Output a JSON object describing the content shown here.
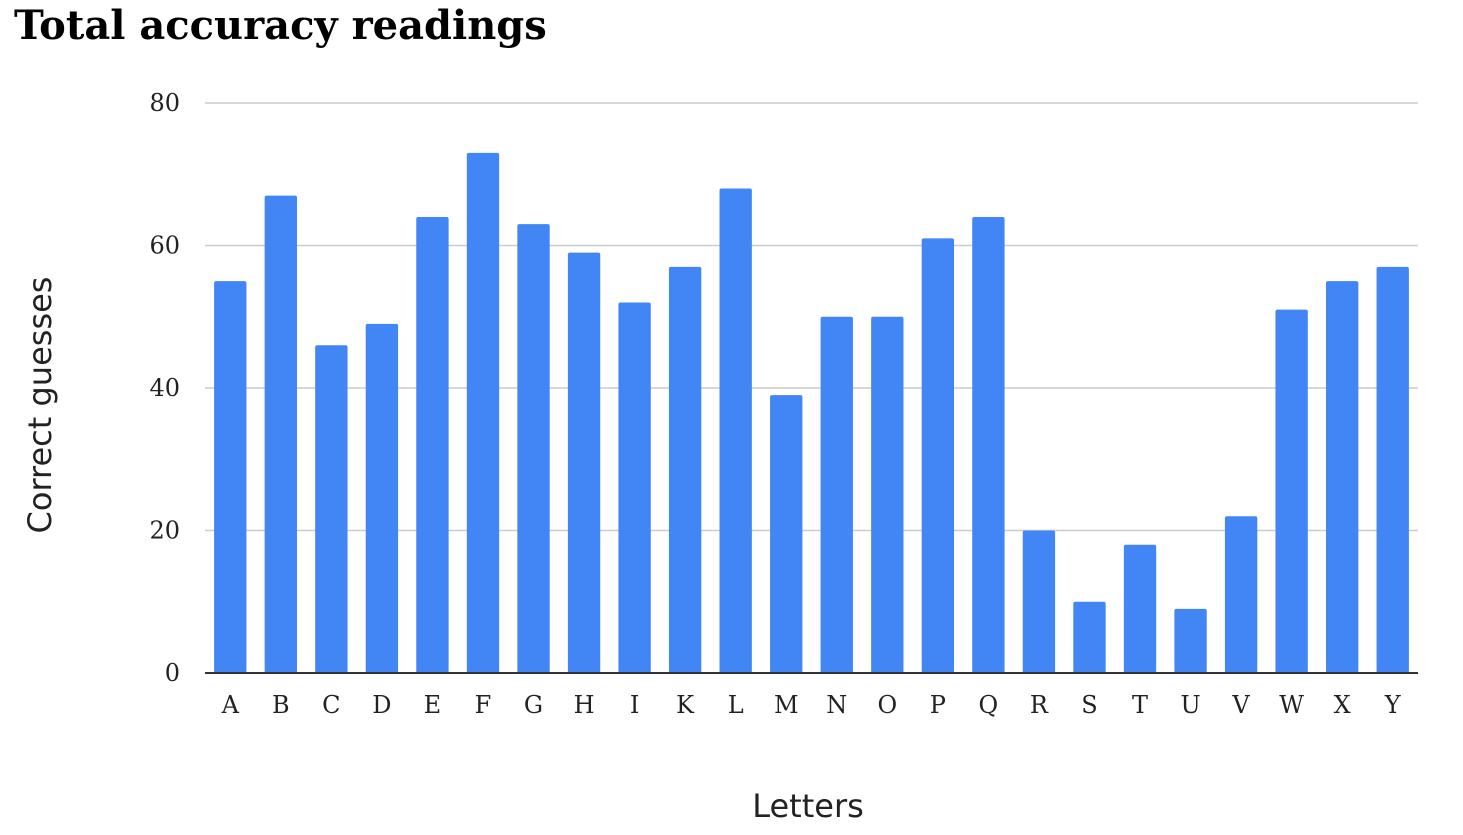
{
  "chart_data": {
    "type": "bar",
    "title": "Total accuracy readings",
    "xlabel": "Letters",
    "ylabel": "Correct guesses",
    "categories": [
      "A",
      "B",
      "C",
      "D",
      "E",
      "F",
      "G",
      "H",
      "I",
      "K",
      "L",
      "M",
      "N",
      "O",
      "P",
      "Q",
      "R",
      "S",
      "T",
      "U",
      "V",
      "W",
      "X",
      "Y"
    ],
    "values": [
      55,
      67,
      46,
      49,
      64,
      73,
      63,
      59,
      52,
      57,
      68,
      39,
      50,
      50,
      61,
      64,
      20,
      10,
      18,
      9,
      22,
      51,
      55,
      57
    ],
    "ylim": [
      0,
      80
    ],
    "yticks": [
      0,
      20,
      40,
      60,
      80
    ],
    "grid": true,
    "bar_color": "#4285f4",
    "gridline_color": "#cccccc",
    "axis_color": "#333333"
  }
}
